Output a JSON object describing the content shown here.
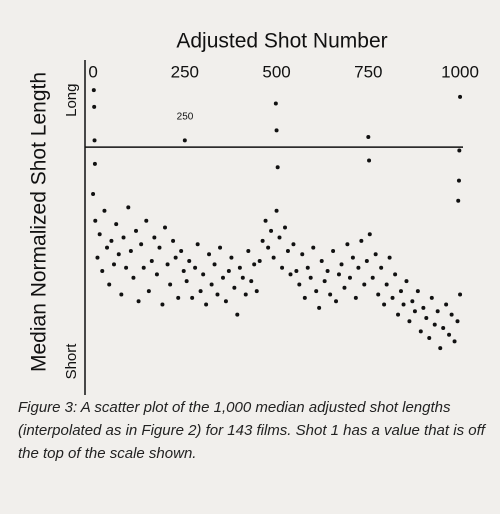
{
  "chart_data": {
    "type": "scatter",
    "title": "Adjusted Shot Number",
    "y_label": "Median Normalized Shot Length",
    "annotation": "250",
    "caption": "Figure 3: A scatter plot of the 1,000 median adjusted shot lengths (interpolated as in Figure 2) for 143 films. Shot 1 has a value that is off the top of the scale shown.",
    "color": "#111111",
    "xlim": [
      -22,
      1008
    ],
    "xticks": [
      0,
      250,
      500,
      750,
      1000
    ],
    "ylim": [
      0,
      100
    ],
    "yticks": [
      {
        "value": 88,
        "label": "Long"
      },
      {
        "value": 10,
        "label": "Short"
      }
    ],
    "hline": 74,
    "x": [
      0,
      6,
      12,
      18,
      25,
      31,
      38,
      44,
      50,
      57,
      63,
      70,
      77,
      83,
      90,
      96,
      103,
      110,
      117,
      124,
      131,
      138,
      145,
      152,
      160,
      167,
      174,
      181,
      189,
      196,
      203,
      210,
      218,
      225,
      232,
      240,
      247,
      255,
      262,
      270,
      278,
      285,
      293,
      300,
      308,
      316,
      323,
      331,
      339,
      346,
      354,
      362,
      370,
      377,
      385,
      393,
      400,
      408,
      416,
      423,
      431,
      439,
      446,
      454,
      462,
      470,
      477,
      485,
      492,
      500,
      508,
      515,
      523,
      531,
      538,
      546,
      554,
      562,
      570,
      577,
      585,
      593,
      600,
      608,
      616,
      623,
      631,
      639,
      646,
      654,
      662,
      670,
      677,
      685,
      693,
      700,
      708,
      716,
      723,
      731,
      739,
      746,
      754,
      762,
      770,
      777,
      785,
      793,
      800,
      808,
      816,
      823,
      831,
      839,
      846,
      854,
      862,
      870,
      877,
      885,
      893,
      900,
      908,
      916,
      923,
      931,
      939,
      946,
      954,
      962,
      970,
      977,
      985,
      993,
      1000,
      2,
      3,
      4,
      5,
      250,
      498,
      500,
      503,
      750,
      752,
      1000,
      998,
      997,
      995
    ],
    "values": [
      60,
      52,
      41,
      48,
      37,
      55,
      44,
      33,
      46,
      39,
      51,
      42,
      30,
      47,
      38,
      56,
      43,
      35,
      49,
      28,
      45,
      38,
      52,
      31,
      40,
      47,
      36,
      44,
      27,
      50,
      39,
      33,
      46,
      41,
      29,
      43,
      37,
      34,
      40,
      29,
      38,
      45,
      31,
      36,
      27,
      42,
      33,
      39,
      30,
      44,
      35,
      28,
      37,
      41,
      32,
      24,
      38,
      35,
      30,
      43,
      34,
      39,
      31,
      40,
      46,
      52,
      44,
      49,
      41,
      55,
      47,
      38,
      50,
      43,
      36,
      45,
      37,
      33,
      42,
      29,
      38,
      35,
      44,
      31,
      26,
      40,
      34,
      37,
      30,
      43,
      28,
      36,
      39,
      32,
      45,
      35,
      41,
      29,
      38,
      46,
      33,
      40,
      48,
      35,
      42,
      30,
      38,
      27,
      33,
      41,
      29,
      36,
      24,
      31,
      27,
      34,
      22,
      28,
      25,
      31,
      19,
      26,
      23,
      17,
      29,
      21,
      25,
      14,
      20,
      27,
      18,
      24,
      16,
      22,
      30,
      91,
      86,
      76,
      69,
      76,
      87,
      79,
      68,
      77,
      70,
      89,
      73,
      64,
      58
    ]
  }
}
